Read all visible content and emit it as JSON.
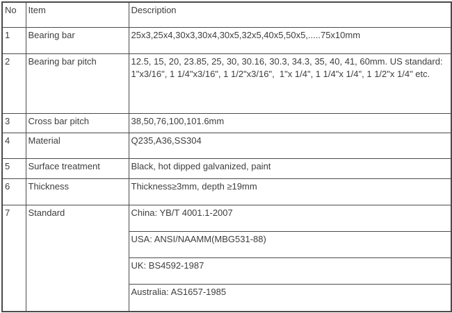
{
  "table": {
    "columns": [
      {
        "label": "No"
      },
      {
        "label": "Item"
      },
      {
        "label": "Description"
      }
    ],
    "rows": [
      {
        "no": "1",
        "item": "Bearing bar",
        "descriptions": [
          "25x3,25x4,30x3,30x4,30x5,32x5,40x5,50x5,.....75x10mm"
        ]
      },
      {
        "no": "2",
        "item": "Bearing bar pitch",
        "descriptions": [
          "12.5, 15, 20, 23.85, 25, 30, 30.16, 30.3, 34.3, 35, 40, 41, 60mm. US standard: 1\"x3/16\", 1 1/4\"x3/16\", 1 1/2\"x3/16\",  1\"x 1/4\", 1 1/4\"x 1/4\", 1 1/2\"x 1/4\" etc."
        ]
      },
      {
        "no": "3",
        "item": "Cross bar pitch",
        "descriptions": [
          "38,50,76,100,101.6mm"
        ]
      },
      {
        "no": "4",
        "item": "Material",
        "descriptions": [
          "Q235,A36,SS304"
        ]
      },
      {
        "no": "5",
        "item": "Surface treatment",
        "descriptions": [
          "Black, hot dipped galvanized, paint"
        ]
      },
      {
        "no": "6",
        "item": "Thickness",
        "descriptions": [
          "Thickness≥3mm, depth ≥19mm"
        ]
      },
      {
        "no": "7",
        "item": "Standard",
        "descriptions": [
          "China: YB/T 4001.1-2007",
          "USA: ANSI/NAAMM(MBG531-88)",
          "UK: BS4592-1987",
          "Australia: AS1657-1985"
        ]
      }
    ]
  },
  "colors": {
    "border": "#4a4a4a",
    "text": "#3d3d3d",
    "background": "#ffffff"
  }
}
